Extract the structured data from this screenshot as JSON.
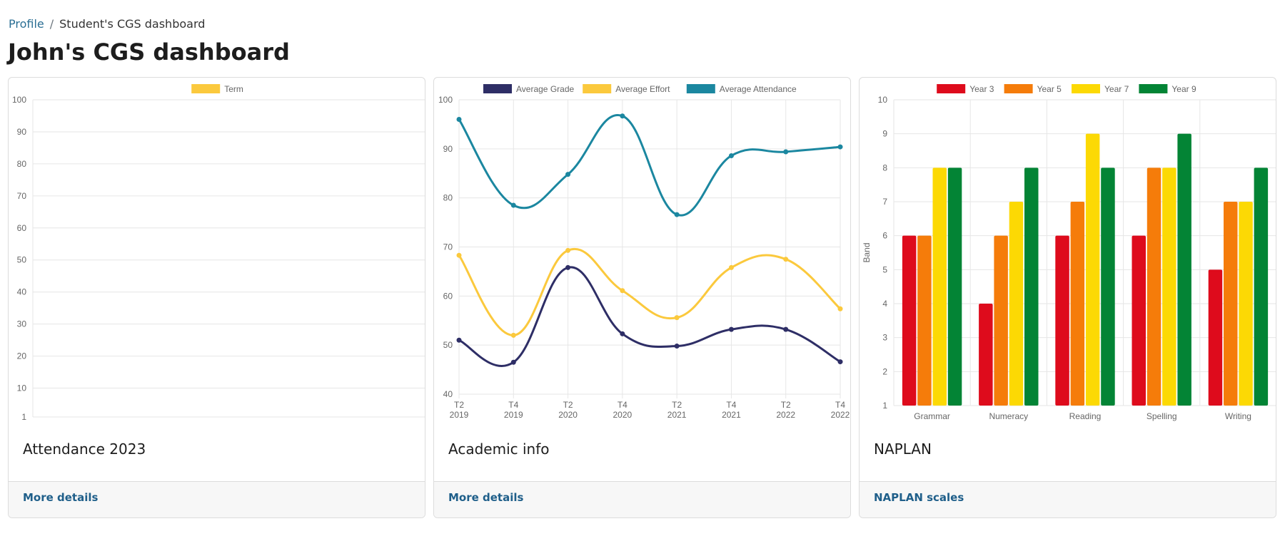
{
  "breadcrumb": {
    "profile_label": "Profile",
    "separator": "/",
    "current_label": "Student's CGS dashboard"
  },
  "page_title": "John's CGS dashboard",
  "cards": {
    "attendance": {
      "title": "Attendance 2023",
      "footer_link": "More details"
    },
    "academic": {
      "title": "Academic info",
      "footer_link": "More details"
    },
    "naplan": {
      "title": "NAPLAN",
      "footer_link": "NAPLAN scales"
    }
  },
  "colors": {
    "grid": "#e6e6e6",
    "tick_text": "#666666",
    "average_grade": "#2e2e66",
    "average_effort": "#fbc93d",
    "average_attendance": "#1b87a0",
    "term": "#fbc93d",
    "year3": "#de0b1c",
    "year5": "#f57c0a",
    "year7": "#fcd904",
    "year9": "#038435"
  },
  "chart_data": [
    {
      "id": "attendance",
      "type": "bar",
      "title": "",
      "xlabel": "",
      "ylabel": "",
      "categories": [],
      "series": [
        {
          "name": "Term",
          "values": []
        }
      ],
      "yticks": [
        "1",
        "10",
        "20",
        "30",
        "40",
        "50",
        "60",
        "70",
        "80",
        "90",
        "100"
      ],
      "ylim": [
        1,
        100
      ],
      "grid": true,
      "legend": "top"
    },
    {
      "id": "academic",
      "type": "line",
      "title": "",
      "xlabel": "",
      "ylabel": "",
      "categories": [
        [
          "T2",
          "2019"
        ],
        [
          "T4",
          "2019"
        ],
        [
          "T2",
          "2020"
        ],
        [
          "T4",
          "2020"
        ],
        [
          "T2",
          "2021"
        ],
        [
          "T4",
          "2021"
        ],
        [
          "T2",
          "2022"
        ],
        [
          "T4",
          "2022"
        ]
      ],
      "series": [
        {
          "name": "Average Grade",
          "values": [
            51,
            46.5,
            65.8,
            52.3,
            49.8,
            53.2,
            53.2,
            46.6
          ]
        },
        {
          "name": "Average Effort",
          "values": [
            68.3,
            52,
            69.3,
            61.1,
            55.6,
            65.8,
            67.5,
            57.4
          ]
        },
        {
          "name": "Average Attendance",
          "values": [
            96,
            78.5,
            84.8,
            96.7,
            76.6,
            88.6,
            89.4,
            90.4
          ]
        }
      ],
      "yticks": [
        "40",
        "50",
        "60",
        "70",
        "80",
        "90",
        "100"
      ],
      "ylim": [
        40,
        100
      ],
      "grid": true,
      "legend": "top"
    },
    {
      "id": "naplan",
      "type": "bar",
      "title": "",
      "xlabel": "",
      "ylabel": "Band",
      "categories": [
        "Grammar",
        "Numeracy",
        "Reading",
        "Spelling",
        "Writing"
      ],
      "series": [
        {
          "name": "Year 3",
          "values": [
            6,
            4,
            6,
            6,
            5
          ]
        },
        {
          "name": "Year 5",
          "values": [
            6,
            6,
            7,
            8,
            7
          ]
        },
        {
          "name": "Year 7",
          "values": [
            8,
            7,
            9,
            8,
            7
          ]
        },
        {
          "name": "Year 9",
          "values": [
            8,
            8,
            8,
            9,
            8
          ]
        }
      ],
      "yticks": [
        "1",
        "2",
        "3",
        "4",
        "5",
        "6",
        "7",
        "8",
        "9",
        "10"
      ],
      "ylim": [
        1,
        10
      ],
      "grid": true,
      "legend": "top"
    }
  ]
}
